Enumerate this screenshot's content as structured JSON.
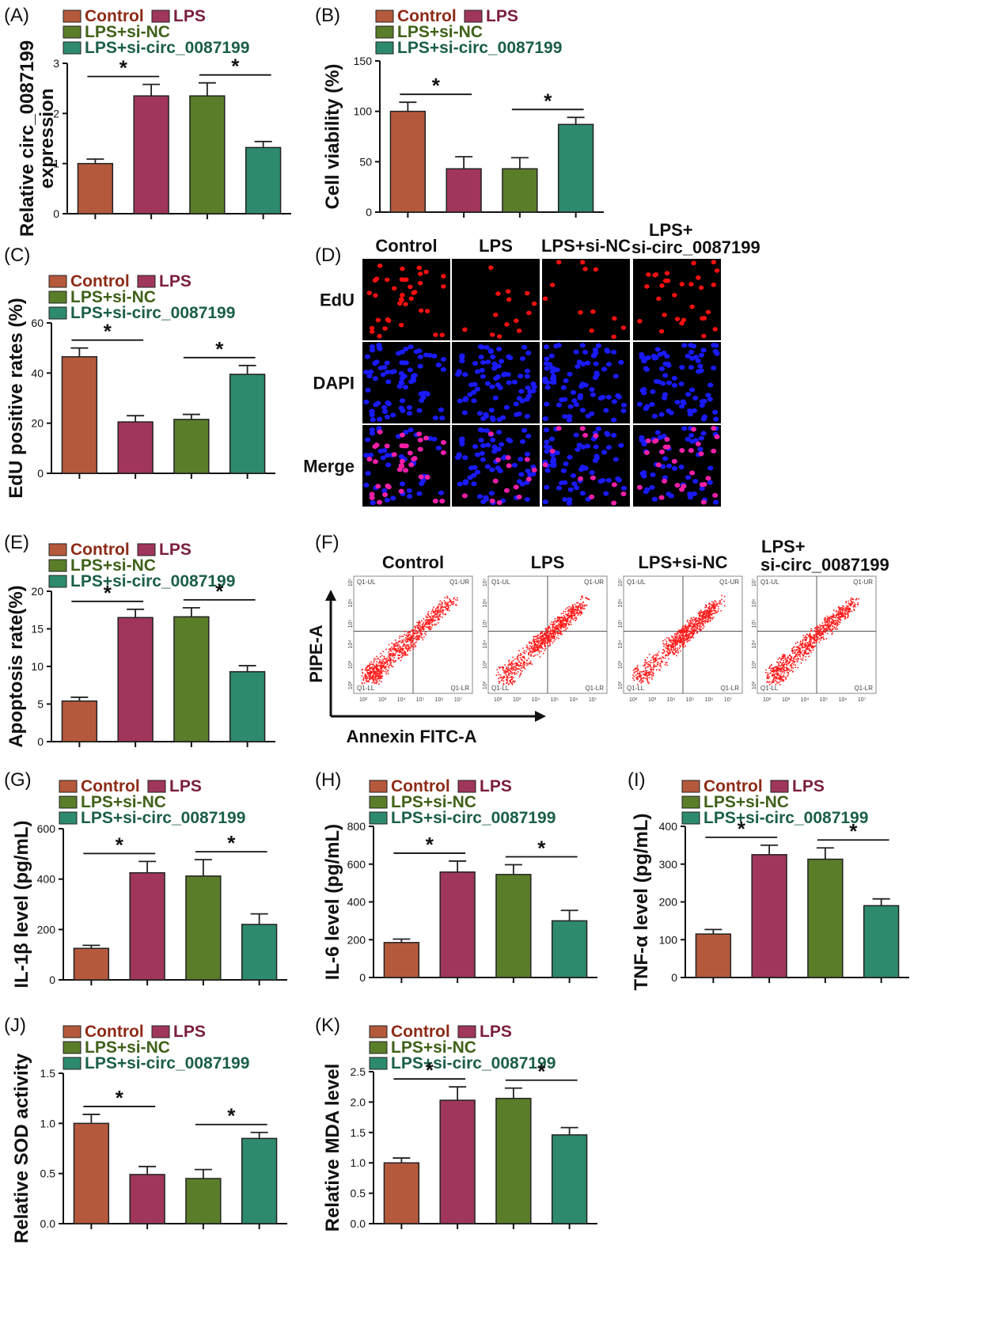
{
  "colors": {
    "Control": "#b5593c",
    "LPS": "#a0365c",
    "LPS+si-NC": "#5a7d2a",
    "LPS+si-circ_0087199": "#2e8a6f",
    "legend_text": [
      "#8e2a16",
      "#7a1d3e",
      "#3f6118",
      "#1a5e4a"
    ],
    "edu": "#ff1010",
    "dapi": "#1a1aff",
    "merge_pink": "#ff1fa0",
    "flow_dots": "#ff1a1a"
  },
  "legend_labels": [
    "Control",
    "LPS",
    "LPS+si-NC",
    "LPS+si-circ_0087199"
  ],
  "chart_data": [
    {
      "panel": "(A)",
      "type": "bar",
      "categories": [
        "Control",
        "LPS",
        "LPS+si-NC",
        "LPS+si-circ_0087199"
      ],
      "values": [
        1.0,
        2.35,
        2.35,
        1.32
      ],
      "errors": [
        0.09,
        0.23,
        0.26,
        0.12
      ],
      "ylabel": "Relative circ_0087199 expression",
      "ylabel_lines": [
        "Relative circ_0087199",
        "expression"
      ],
      "ylim": [
        0,
        3
      ],
      "yticks": [
        0,
        1,
        2,
        3
      ],
      "significance": [
        [
          0,
          1
        ],
        [
          2,
          3
        ]
      ]
    },
    {
      "panel": "(B)",
      "type": "bar",
      "categories": [
        "Control",
        "LPS",
        "LPS+si-NC",
        "LPS+si-circ_0087199"
      ],
      "values": [
        100,
        43,
        43,
        87
      ],
      "errors": [
        9,
        12,
        11,
        7
      ],
      "ylabel": "Cell viability (%)",
      "ylabel_lines": [
        "Cell viability (%)"
      ],
      "ylim": [
        0,
        150
      ],
      "yticks": [
        0,
        50,
        100,
        150
      ],
      "significance": [
        [
          0,
          1
        ],
        [
          2,
          3
        ]
      ]
    },
    {
      "panel": "(C)",
      "type": "bar",
      "categories": [
        "Control",
        "LPS",
        "LPS+si-NC",
        "LPS+si-circ_0087199"
      ],
      "values": [
        46.5,
        20.5,
        21.5,
        39.5
      ],
      "errors": [
        3.5,
        2.5,
        2,
        3.5
      ],
      "ylabel": "EdU positive rates (%)",
      "ylabel_lines": [
        "EdU positive rates (%)"
      ],
      "ylim": [
        0,
        60
      ],
      "yticks": [
        0,
        20,
        40,
        60
      ],
      "significance": [
        [
          0,
          1
        ],
        [
          2,
          3
        ]
      ]
    },
    {
      "panel": "(E)",
      "type": "bar",
      "categories": [
        "Control",
        "LPS",
        "LPS+si-NC",
        "LPS+si-circ_0087199"
      ],
      "values": [
        5.4,
        16.5,
        16.6,
        9.3
      ],
      "errors": [
        0.5,
        1.1,
        1.2,
        0.8
      ],
      "ylabel": "Apoptosis rate(%)",
      "ylabel_lines": [
        "Apoptosis rate(%)"
      ],
      "ylim": [
        0,
        20
      ],
      "yticks": [
        0,
        5,
        10,
        15,
        20
      ],
      "significance": [
        [
          0,
          1
        ],
        [
          2,
          3
        ]
      ]
    },
    {
      "panel": "(G)",
      "type": "bar",
      "categories": [
        "Control",
        "LPS",
        "LPS+si-NC",
        "LPS+si-circ_0087199"
      ],
      "values": [
        125,
        425,
        412,
        220
      ],
      "errors": [
        12,
        45,
        65,
        42
      ],
      "ylabel": "IL-1β level (pg/mL)",
      "ylabel_lines": [
        "IL-1β level (pg/mL)"
      ],
      "ylim": [
        0,
        600
      ],
      "yticks": [
        0,
        200,
        400,
        600
      ],
      "significance": [
        [
          0,
          1
        ],
        [
          2,
          3
        ]
      ]
    },
    {
      "panel": "(H)",
      "type": "bar",
      "categories": [
        "Control",
        "LPS",
        "LPS+si-NC",
        "LPS+si-circ_0087199"
      ],
      "values": [
        185,
        558,
        545,
        300
      ],
      "errors": [
        18,
        58,
        52,
        55
      ],
      "ylabel": "IL-6 level (pg/mL)",
      "ylabel_lines": [
        "IL-6 level (pg/mL)"
      ],
      "ylim": [
        0,
        800
      ],
      "yticks": [
        0,
        200,
        400,
        600,
        800
      ],
      "significance": [
        [
          0,
          1
        ],
        [
          2,
          3
        ]
      ]
    },
    {
      "panel": "(I)",
      "type": "bar",
      "categories": [
        "Control",
        "LPS",
        "LPS+si-NC",
        "LPS+si-circ_0087199"
      ],
      "values": [
        115,
        325,
        313,
        190
      ],
      "errors": [
        12,
        25,
        30,
        18
      ],
      "ylabel": "TNF-α level (pg/mL)",
      "ylabel_lines": [
        "TNF-α level (pg/mL)"
      ],
      "ylim": [
        0,
        400
      ],
      "yticks": [
        0,
        100,
        200,
        300,
        400
      ],
      "significance": [
        [
          0,
          1
        ],
        [
          2,
          3
        ]
      ]
    },
    {
      "panel": "(J)",
      "type": "bar",
      "categories": [
        "Control",
        "LPS",
        "LPS+si-NC",
        "LPS+si-circ_0087199"
      ],
      "values": [
        1.0,
        0.49,
        0.45,
        0.85
      ],
      "errors": [
        0.09,
        0.08,
        0.09,
        0.06
      ],
      "ylabel": "Relative SOD activity",
      "ylabel_lines": [
        "Relative SOD activity"
      ],
      "ylim": [
        0,
        1.5
      ],
      "yticks": [
        0.0,
        0.5,
        1.0,
        1.5
      ],
      "significance": [
        [
          0,
          1
        ],
        [
          2,
          3
        ]
      ]
    },
    {
      "panel": "(K)",
      "type": "bar",
      "categories": [
        "Control",
        "LPS",
        "LPS+si-NC",
        "LPS+si-circ_0087199"
      ],
      "values": [
        1.0,
        2.03,
        2.06,
        1.46
      ],
      "errors": [
        0.08,
        0.22,
        0.17,
        0.12
      ],
      "ylabel": "Relative MDA level",
      "ylabel_lines": [
        "Relative MDA level"
      ],
      "ylim": [
        0,
        2.5
      ],
      "yticks": [
        0.0,
        0.5,
        1.0,
        1.5,
        2.0,
        2.5
      ],
      "significance": [
        [
          0,
          1
        ],
        [
          2,
          3
        ]
      ]
    }
  ],
  "microscopy": {
    "panel": "(D)",
    "columns": [
      "Control",
      "LPS",
      "LPS+si-NC",
      "LPS+\nsi-circ_0087199"
    ],
    "rows": [
      "EdU",
      "DAPI",
      "Merge"
    ],
    "edu_cell_counts": [
      38,
      14,
      12,
      30
    ]
  },
  "flow": {
    "panel": "(F)",
    "columns": [
      "Control",
      "LPS",
      "LPS+si-NC",
      "LPS+\nsi-circ_0087199"
    ],
    "quadrants": [
      "Q1-UL",
      "Q1-UR",
      "Q1-LL",
      "Q1-LR"
    ],
    "x_axis_title": "Annexin FITC-A",
    "y_axis_title": "PIPE-A",
    "x_ticks": [
      "10²",
      "10³",
      "10⁴",
      "10⁵",
      "10⁶",
      "10⁷"
    ],
    "y_ticks": [
      "10²",
      "10³",
      "10⁴",
      "10⁵",
      "10⁶",
      "10⁷"
    ],
    "upper_right_density": [
      0.15,
      0.5,
      0.55,
      0.3
    ]
  }
}
